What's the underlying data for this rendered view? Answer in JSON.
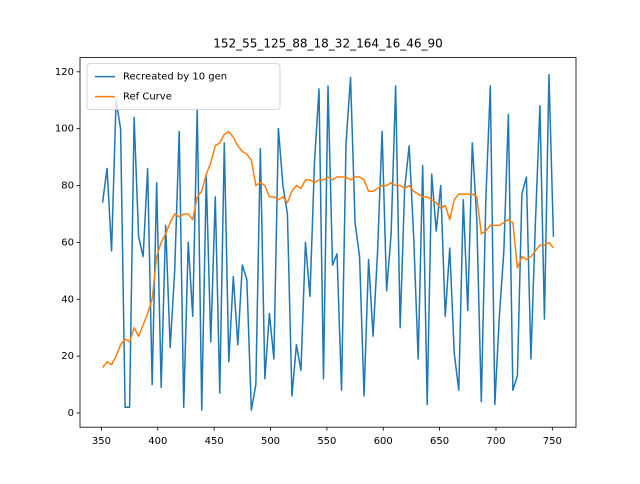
{
  "chart_data": {
    "type": "line",
    "title": "152_55_125_88_18_32_164_16_46_90",
    "x": [
      351,
      355,
      359,
      363,
      367,
      371,
      375,
      379,
      383,
      387,
      391,
      395,
      399,
      403,
      407,
      411,
      415,
      419,
      423,
      427,
      431,
      435,
      439,
      443,
      447,
      451,
      455,
      459,
      463,
      467,
      471,
      475,
      479,
      483,
      487,
      491,
      495,
      499,
      503,
      507,
      511,
      515,
      519,
      523,
      527,
      531,
      535,
      539,
      543,
      547,
      551,
      555,
      559,
      563,
      567,
      571,
      575,
      579,
      583,
      587,
      591,
      595,
      599,
      603,
      607,
      611,
      615,
      619,
      623,
      627,
      631,
      635,
      639,
      643,
      647,
      651,
      655,
      659,
      663,
      667,
      671,
      675,
      679,
      683,
      687,
      691,
      695,
      699,
      703,
      707,
      711,
      715,
      719,
      723,
      727,
      731,
      735,
      739,
      743,
      747,
      751
    ],
    "series": [
      {
        "name": "Recreated by 10 gen",
        "color": "#1f77b4",
        "values": [
          74,
          86,
          57,
          110,
          100,
          2,
          2,
          104,
          62,
          55,
          86,
          10,
          81,
          9,
          66,
          23,
          50,
          99,
          2,
          60,
          34,
          107,
          1,
          83,
          25,
          76,
          7,
          95,
          18,
          48,
          24,
          52,
          47,
          1,
          10,
          93,
          12,
          35,
          19,
          100,
          80,
          70,
          6,
          24,
          15,
          60,
          41,
          88,
          114,
          12,
          115,
          52,
          56,
          8,
          95,
          118,
          67,
          55,
          6,
          54,
          27,
          57,
          99,
          43,
          63,
          115,
          30,
          79,
          94,
          62,
          19,
          87,
          3,
          84,
          64,
          80,
          34,
          58,
          21,
          8,
          75,
          36,
          95,
          68,
          4,
          75,
          115,
          3,
          34,
          57,
          105,
          8,
          13,
          77,
          83,
          19,
          67,
          108,
          33,
          119,
          62
        ]
      },
      {
        "name": "Ref Curve",
        "color": "#ff7f0e",
        "values": [
          16,
          18,
          17,
          20,
          24,
          26,
          25,
          30,
          27,
          31,
          35,
          40,
          55,
          60,
          63,
          67,
          70,
          69,
          70,
          70,
          68,
          76,
          78,
          84,
          88,
          94,
          95,
          98,
          99,
          97,
          94,
          92,
          91,
          89,
          80,
          81,
          80,
          76,
          76,
          75,
          76,
          74,
          78,
          80,
          79,
          82,
          82,
          81,
          82,
          82,
          83,
          82,
          83,
          83,
          83,
          82,
          83,
          83,
          82,
          78,
          78,
          79,
          80,
          80,
          81,
          80,
          80,
          79,
          80,
          78,
          77,
          76,
          76,
          75,
          74,
          72,
          73,
          68,
          75,
          77,
          77,
          77,
          77,
          76,
          63,
          64,
          66,
          66,
          66,
          67,
          68,
          67,
          51,
          55,
          54,
          55,
          57,
          59,
          59,
          60,
          58
        ]
      }
    ],
    "xlim": [
      331,
      771
    ],
    "ylim": [
      -5,
      125
    ],
    "xticks": [
      350,
      400,
      450,
      500,
      550,
      600,
      650,
      700,
      750
    ],
    "yticks": [
      0,
      20,
      40,
      60,
      80,
      100,
      120
    ],
    "legend": "upper left"
  }
}
